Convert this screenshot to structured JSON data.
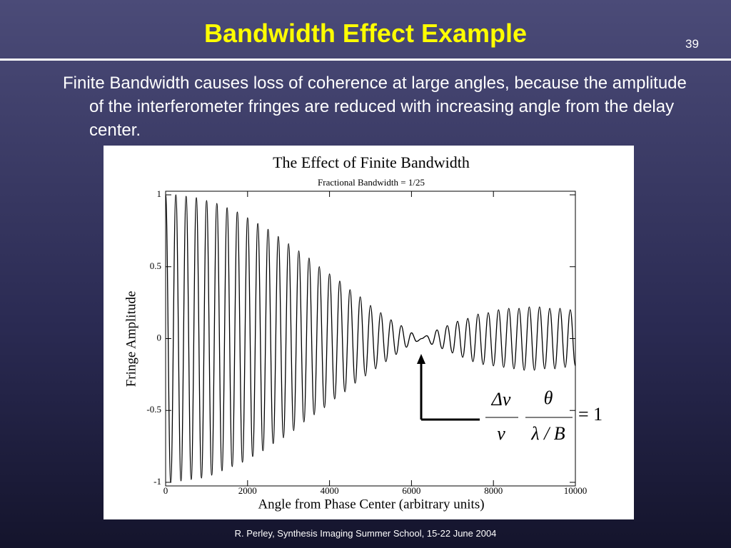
{
  "slide": {
    "title": "Bandwidth Effect Example",
    "page_number": "39",
    "body": "Finite Bandwidth causes loss of coherence at large angles, because the amplitude of the interferometer fringes are reduced with increasing angle from the delay center.",
    "footer": "R. Perley, Synthesis Imaging Summer School, 15-22 June 2004"
  },
  "chart_data": {
    "type": "line",
    "title": "The Effect of Finite Bandwidth",
    "subtitle": "Fractional Bandwidth = 1/25",
    "x_label": "Angle from Phase Center (arbitrary units)",
    "y_label": "Fringe Amplitude",
    "x": [
      0,
      125,
      250,
      375,
      500,
      625,
      750,
      875,
      1000,
      1125,
      1250,
      1375,
      1500,
      1625,
      1750,
      1875,
      2000,
      2125,
      2250,
      2375,
      2500,
      2625,
      2750,
      2875,
      3000,
      3125,
      3250,
      3375,
      3500,
      3625,
      3750,
      3875,
      4000,
      4125,
      4250,
      4375,
      4500,
      4625,
      4750,
      4875,
      5000,
      5125,
      5250,
      5375,
      5500,
      5625,
      5750,
      5875,
      6000,
      6125,
      6250,
      6375,
      6500,
      6625,
      6750,
      6875,
      7000,
      7125,
      7250,
      7375,
      7500,
      7625,
      7750,
      7875,
      8000,
      8125,
      8250,
      8375,
      8500,
      8625,
      8750,
      8875,
      9000,
      9125,
      9250,
      9375,
      9500,
      9625,
      9750,
      9875,
      10000
    ],
    "series": [
      {
        "color": "#000000",
        "values": [
          1,
          -1,
          1,
          -0.99,
          0.99,
          -0.98,
          0.98,
          -0.97,
          0.96,
          -0.95,
          0.94,
          -0.92,
          0.91,
          -0.89,
          0.88,
          -0.86,
          0.84,
          -0.82,
          0.8,
          -0.78,
          0.76,
          -0.73,
          0.71,
          -0.69,
          0.66,
          -0.64,
          0.61,
          -0.58,
          0.56,
          -0.53,
          0.5,
          -0.48,
          0.45,
          -0.42,
          0.4,
          -0.37,
          0.34,
          -0.31,
          0.29,
          -0.26,
          0.23,
          -0.21,
          0.18,
          -0.16,
          0.13,
          -0.11,
          0.09,
          -0.06,
          0.04,
          -0.02,
          0,
          0.02,
          -0.04,
          0.06,
          -0.07,
          0.09,
          -0.1,
          0.12,
          -0.13,
          0.14,
          -0.16,
          0.17,
          -0.18,
          0.18,
          -0.19,
          0.2,
          -0.2,
          0.21,
          -0.21,
          0.21,
          -0.22,
          0.22,
          -0.22,
          0.22,
          -0.21,
          0.21,
          -0.21,
          0.21,
          -0.2,
          0.2,
          -0.19
        ]
      }
    ],
    "xlim": [
      0,
      10000
    ],
    "ylim": [
      -1.025,
      1.025
    ],
    "xticks": [
      0,
      2000,
      4000,
      6000,
      8000,
      10000
    ],
    "yticks": [
      -1,
      -0.5,
      0,
      0.5,
      1
    ],
    "annotation": {
      "num1": "Δν",
      "den1": "ν",
      "num2": "θ",
      "den2": "λ / B",
      "rhs": "= 1"
    }
  }
}
